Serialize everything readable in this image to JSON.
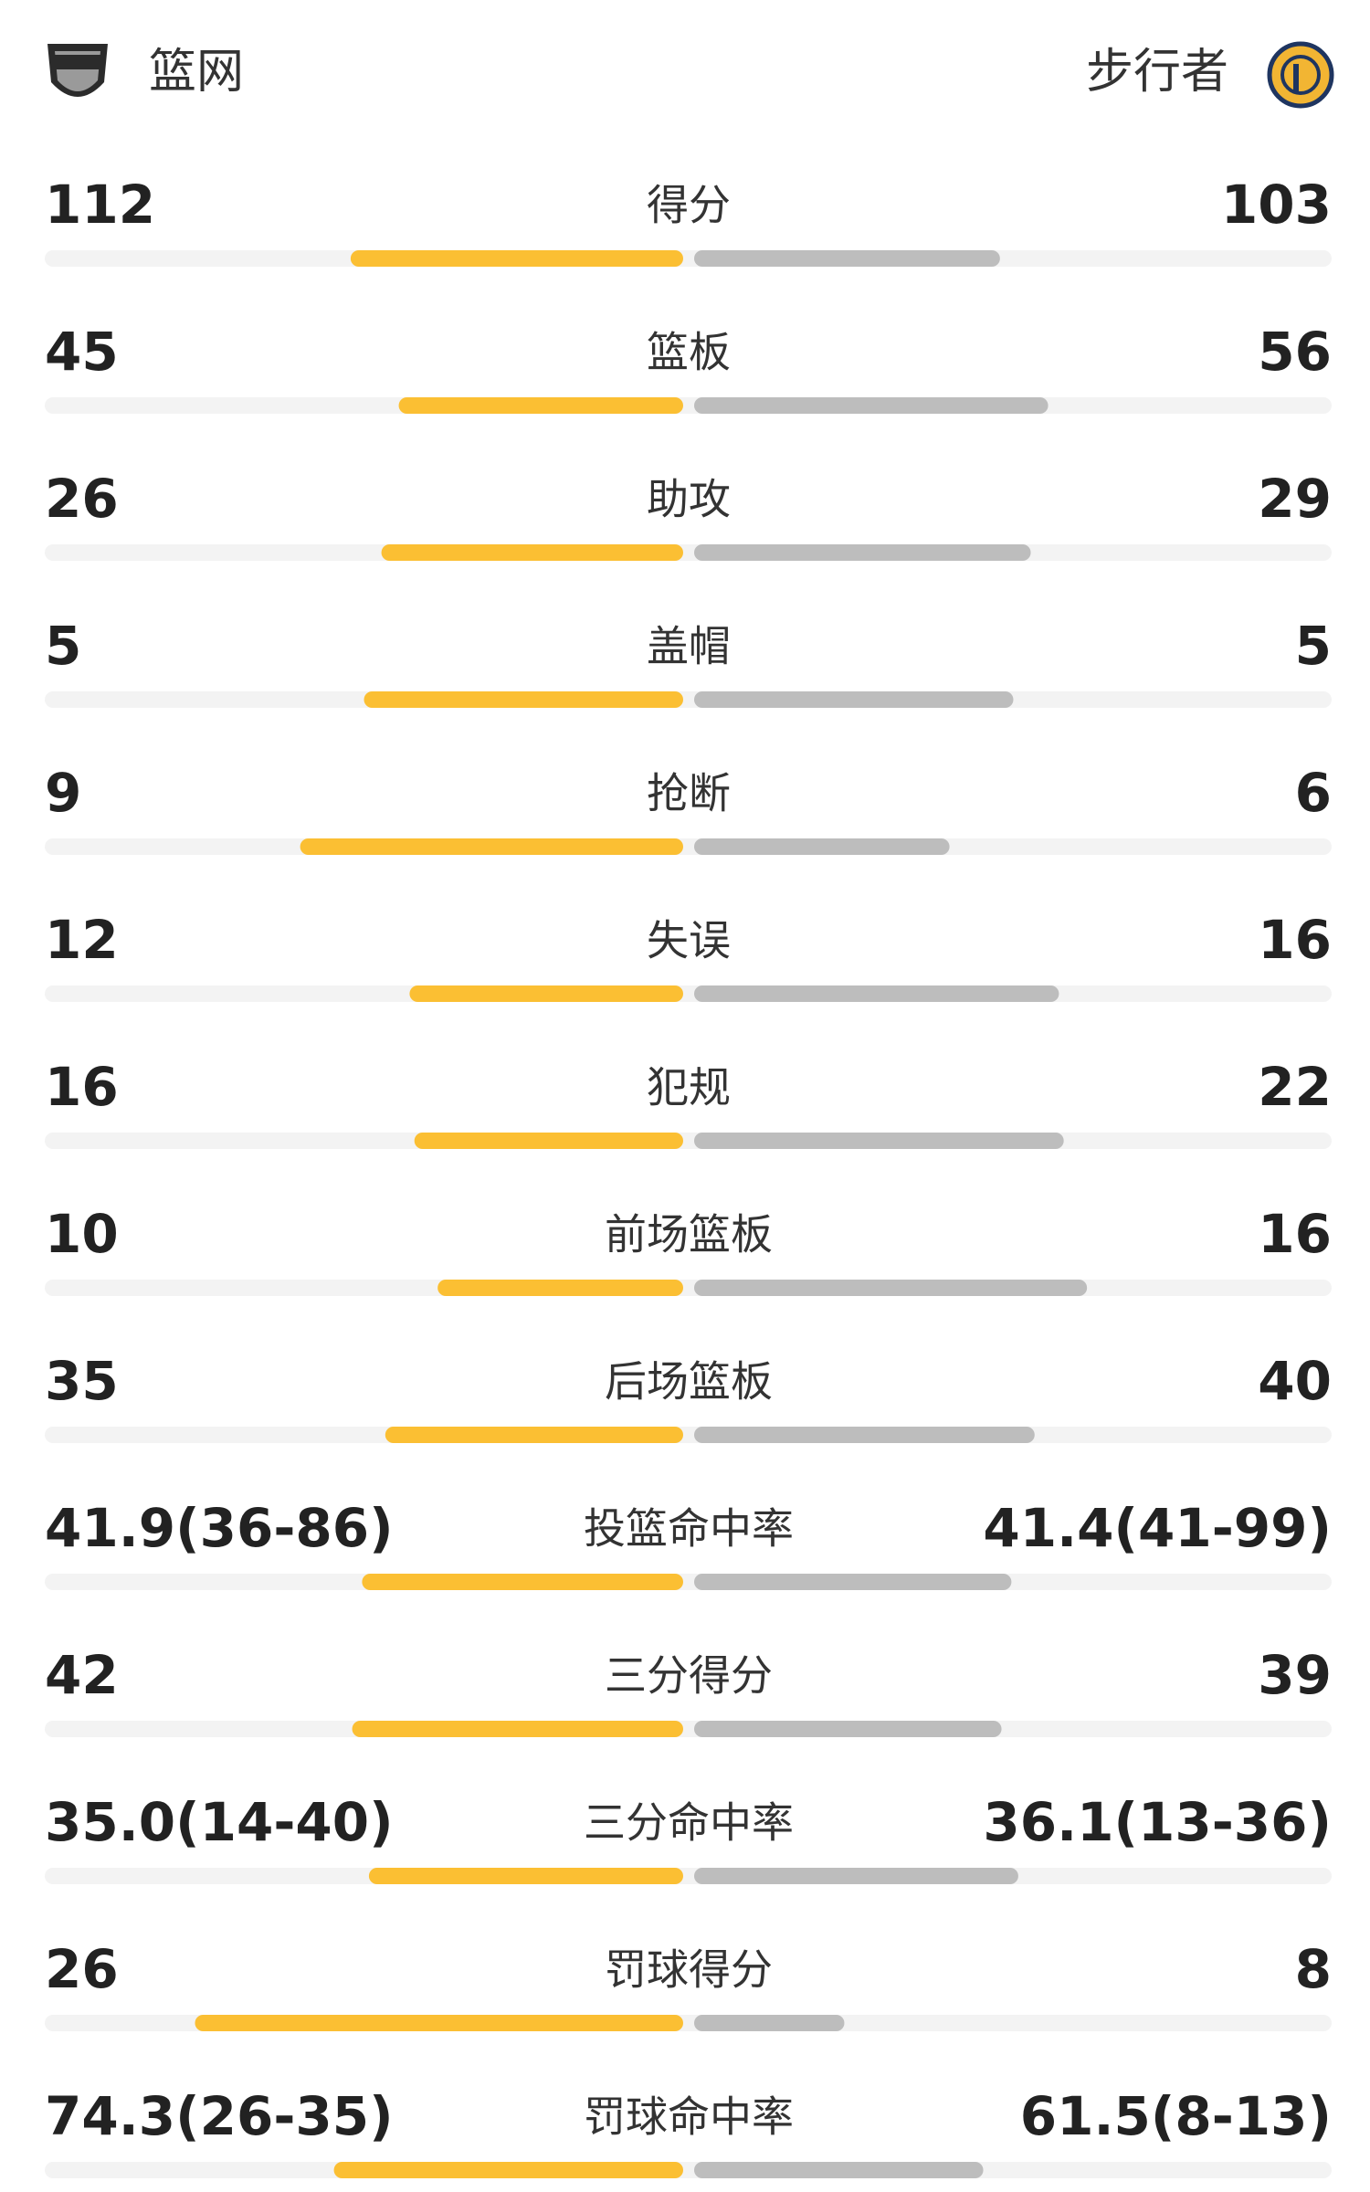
{
  "chart_data": {
    "type": "diverging-bar",
    "categories": [
      "得分",
      "篮板",
      "助攻",
      "盖帽",
      "抢断",
      "失误",
      "犯规",
      "前场篮板",
      "后场篮板",
      "投篮命中率",
      "三分得分",
      "三分命中率",
      "罚球得分",
      "罚球命中率"
    ],
    "series": [
      {
        "name": "篮网",
        "color": "#fbbf33",
        "values": [
          112,
          45,
          26,
          5,
          9,
          12,
          16,
          10,
          35,
          41.9,
          42,
          35.0,
          26,
          74.3
        ],
        "value_labels": [
          "112",
          "45",
          "26",
          "5",
          "9",
          "12",
          "16",
          "10",
          "35",
          "41.9(36-86)",
          "42",
          "35.0(14-40)",
          "26",
          "74.3(26-35)"
        ]
      },
      {
        "name": "步行者",
        "color": "#bdbdbd",
        "values": [
          103,
          56,
          29,
          5,
          6,
          16,
          22,
          16,
          40,
          41.4,
          39,
          36.1,
          8,
          61.5
        ],
        "value_labels": [
          "103",
          "56",
          "29",
          "5",
          "6",
          "16",
          "22",
          "16",
          "40",
          "41.4(41-99)",
          "39",
          "36.1(13-36)",
          "8",
          "61.5(8-13)"
        ]
      }
    ]
  }
}
